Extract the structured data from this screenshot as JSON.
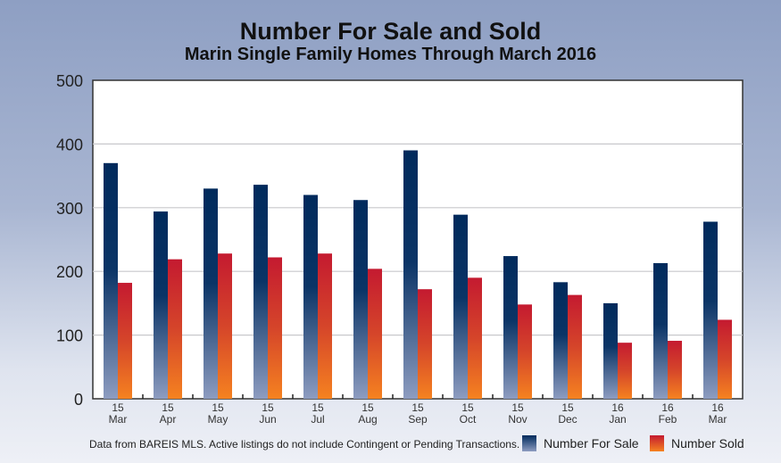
{
  "chart_data": {
    "type": "bar",
    "title": "Number For Sale and Sold",
    "subtitle": "Marin Single Family Homes Through March 2016",
    "categories": [
      [
        "15",
        "Mar"
      ],
      [
        "15",
        "Apr"
      ],
      [
        "15",
        "May"
      ],
      [
        "15",
        "Jun"
      ],
      [
        "15",
        "Jul"
      ],
      [
        "15",
        "Aug"
      ],
      [
        "15",
        "Sep"
      ],
      [
        "15",
        "Oct"
      ],
      [
        "15",
        "Nov"
      ],
      [
        "15",
        "Dec"
      ],
      [
        "16",
        "Jan"
      ],
      [
        "16",
        "Feb"
      ],
      [
        "16",
        "Mar"
      ]
    ],
    "series": [
      {
        "name": "Number For Sale",
        "color": "#002a5c",
        "values": [
          370,
          294,
          330,
          336,
          320,
          312,
          390,
          289,
          224,
          183,
          150,
          213,
          278
        ]
      },
      {
        "name": "Number Sold",
        "color": "#c8202f",
        "values": [
          182,
          219,
          228,
          222,
          228,
          204,
          172,
          190,
          148,
          163,
          88,
          91,
          124
        ]
      }
    ],
    "ylim": [
      0,
      500
    ],
    "yticks": [
      "0",
      "100",
      "200",
      "300",
      "400",
      "500"
    ],
    "grid": true,
    "legend": "bottom-right",
    "note": "Data from BAREIS MLS. Active listings do not include Contingent or Pending Transactions."
  }
}
